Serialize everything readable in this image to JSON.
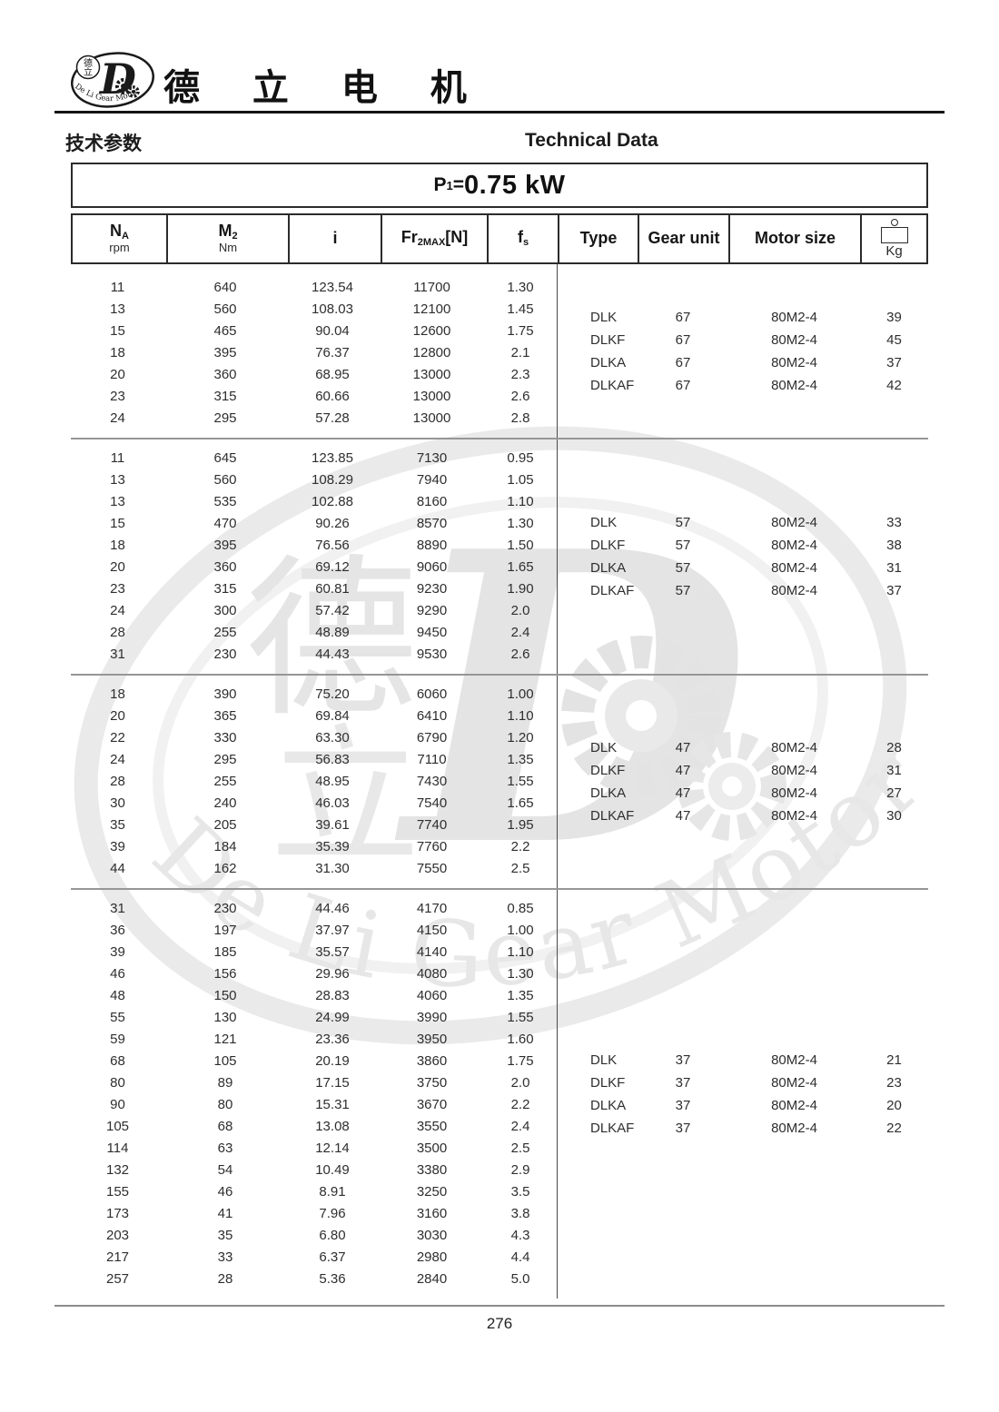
{
  "page": {
    "number": "276"
  },
  "header": {
    "brand": "德 立 电 机",
    "logo": {
      "letter": "D",
      "cn_top": "德",
      "cn_bottom": "立",
      "arc": "De Li Gear Motor"
    },
    "section_cn": "技术参数",
    "section_en": "Technical Data"
  },
  "title": {
    "p": "P",
    "p_sub": "1",
    "eq": "=",
    "value": "0.75 kW"
  },
  "table": {
    "header": {
      "na": {
        "main": "N",
        "sub": "A",
        "unit": "rpm"
      },
      "m2": {
        "main": "M",
        "sub": "2",
        "unit": "Nm"
      },
      "i": "i",
      "fr": {
        "main": "Fr",
        "sub": "2MAX",
        "bracket": "[N]"
      },
      "fs": {
        "main": "f",
        "sub": "s"
      },
      "type": "Type",
      "gear": "Gear unit",
      "motor": "Motor size",
      "kg": "Kg"
    },
    "sections": [
      {
        "rows": [
          [
            "11",
            "640",
            "123.54",
            "11700",
            "1.30"
          ],
          [
            "13",
            "560",
            "108.03",
            "12100",
            "1.45"
          ],
          [
            "15",
            "465",
            "90.04",
            "12600",
            "1.75"
          ],
          [
            "18",
            "395",
            "76.37",
            "12800",
            "2.1"
          ],
          [
            "20",
            "360",
            "68.95",
            "13000",
            "2.3"
          ],
          [
            "23",
            "315",
            "60.66",
            "13000",
            "2.6"
          ],
          [
            "24",
            "295",
            "57.28",
            "13000",
            "2.8"
          ]
        ],
        "types": [
          {
            "type": "DLK",
            "gear_unit": "67",
            "motor_size": "80M2-4",
            "kg": "39"
          },
          {
            "type": "DLKF",
            "gear_unit": "67",
            "motor_size": "80M2-4",
            "kg": "45"
          },
          {
            "type": "DLKA",
            "gear_unit": "67",
            "motor_size": "80M2-4",
            "kg": "37"
          },
          {
            "type": "DLKAF",
            "gear_unit": "67",
            "motor_size": "80M2-4",
            "kg": "42"
          }
        ]
      },
      {
        "rows": [
          [
            "11",
            "645",
            "123.85",
            "7130",
            "0.95"
          ],
          [
            "13",
            "560",
            "108.29",
            "7940",
            "1.05"
          ],
          [
            "13",
            "535",
            "102.88",
            "8160",
            "1.10"
          ],
          [
            "15",
            "470",
            "90.26",
            "8570",
            "1.30"
          ],
          [
            "18",
            "395",
            "76.56",
            "8890",
            "1.50"
          ],
          [
            "20",
            "360",
            "69.12",
            "9060",
            "1.65"
          ],
          [
            "23",
            "315",
            "60.81",
            "9230",
            "1.90"
          ],
          [
            "24",
            "300",
            "57.42",
            "9290",
            "2.0"
          ],
          [
            "28",
            "255",
            "48.89",
            "9450",
            "2.4"
          ],
          [
            "31",
            "230",
            "44.43",
            "9530",
            "2.6"
          ]
        ],
        "types": [
          {
            "type": "DLK",
            "gear_unit": "57",
            "motor_size": "80M2-4",
            "kg": "33"
          },
          {
            "type": "DLKF",
            "gear_unit": "57",
            "motor_size": "80M2-4",
            "kg": "38"
          },
          {
            "type": "DLKA",
            "gear_unit": "57",
            "motor_size": "80M2-4",
            "kg": "31"
          },
          {
            "type": "DLKAF",
            "gear_unit": "57",
            "motor_size": "80M2-4",
            "kg": "37"
          }
        ]
      },
      {
        "rows": [
          [
            "18",
            "390",
            "75.20",
            "6060",
            "1.00"
          ],
          [
            "20",
            "365",
            "69.84",
            "6410",
            "1.10"
          ],
          [
            "22",
            "330",
            "63.30",
            "6790",
            "1.20"
          ],
          [
            "24",
            "295",
            "56.83",
            "7110",
            "1.35"
          ],
          [
            "28",
            "255",
            "48.95",
            "7430",
            "1.55"
          ],
          [
            "30",
            "240",
            "46.03",
            "7540",
            "1.65"
          ],
          [
            "35",
            "205",
            "39.61",
            "7740",
            "1.95"
          ],
          [
            "39",
            "184",
            "35.39",
            "7760",
            "2.2"
          ],
          [
            "44",
            "162",
            "31.30",
            "7550",
            "2.5"
          ]
        ],
        "types": [
          {
            "type": "DLK",
            "gear_unit": "47",
            "motor_size": "80M2-4",
            "kg": "28"
          },
          {
            "type": "DLKF",
            "gear_unit": "47",
            "motor_size": "80M2-4",
            "kg": "31"
          },
          {
            "type": "DLKA",
            "gear_unit": "47",
            "motor_size": "80M2-4",
            "kg": "27"
          },
          {
            "type": "DLKAF",
            "gear_unit": "47",
            "motor_size": "80M2-4",
            "kg": "30"
          }
        ]
      },
      {
        "rows": [
          [
            "31",
            "230",
            "44.46",
            "4170",
            "0.85"
          ],
          [
            "36",
            "197",
            "37.97",
            "4150",
            "1.00"
          ],
          [
            "39",
            "185",
            "35.57",
            "4140",
            "1.10"
          ],
          [
            "46",
            "156",
            "29.96",
            "4080",
            "1.30"
          ],
          [
            "48",
            "150",
            "28.83",
            "4060",
            "1.35"
          ],
          [
            "55",
            "130",
            "24.99",
            "3990",
            "1.55"
          ],
          [
            "59",
            "121",
            "23.36",
            "3950",
            "1.60"
          ],
          [
            "68",
            "105",
            "20.19",
            "3860",
            "1.75"
          ],
          [
            "80",
            "89",
            "17.15",
            "3750",
            "2.0"
          ],
          [
            "90",
            "80",
            "15.31",
            "3670",
            "2.2"
          ],
          [
            "105",
            "68",
            "13.08",
            "3550",
            "2.4"
          ],
          [
            "114",
            "63",
            "12.14",
            "3500",
            "2.5"
          ],
          [
            "132",
            "54",
            "10.49",
            "3380",
            "2.9"
          ],
          [
            "155",
            "46",
            "8.91",
            "3250",
            "3.5"
          ],
          [
            "173",
            "41",
            "7.96",
            "3160",
            "3.8"
          ],
          [
            "203",
            "35",
            "6.80",
            "3030",
            "4.3"
          ],
          [
            "217",
            "33",
            "6.37",
            "2980",
            "4.4"
          ],
          [
            "257",
            "28",
            "5.36",
            "2840",
            "5.0"
          ]
        ],
        "types": [
          {
            "type": "DLK",
            "gear_unit": "37",
            "motor_size": "80M2-4",
            "kg": "21"
          },
          {
            "type": "DLKF",
            "gear_unit": "37",
            "motor_size": "80M2-4",
            "kg": "23"
          },
          {
            "type": "DLKA",
            "gear_unit": "37",
            "motor_size": "80M2-4",
            "kg": "20"
          },
          {
            "type": "DLKAF",
            "gear_unit": "37",
            "motor_size": "80M2-4",
            "kg": "22"
          }
        ]
      }
    ]
  },
  "watermark": {
    "letter": "D",
    "cn_top": "德",
    "cn_bottom": "立",
    "arc": "De Li Gear Motor"
  }
}
